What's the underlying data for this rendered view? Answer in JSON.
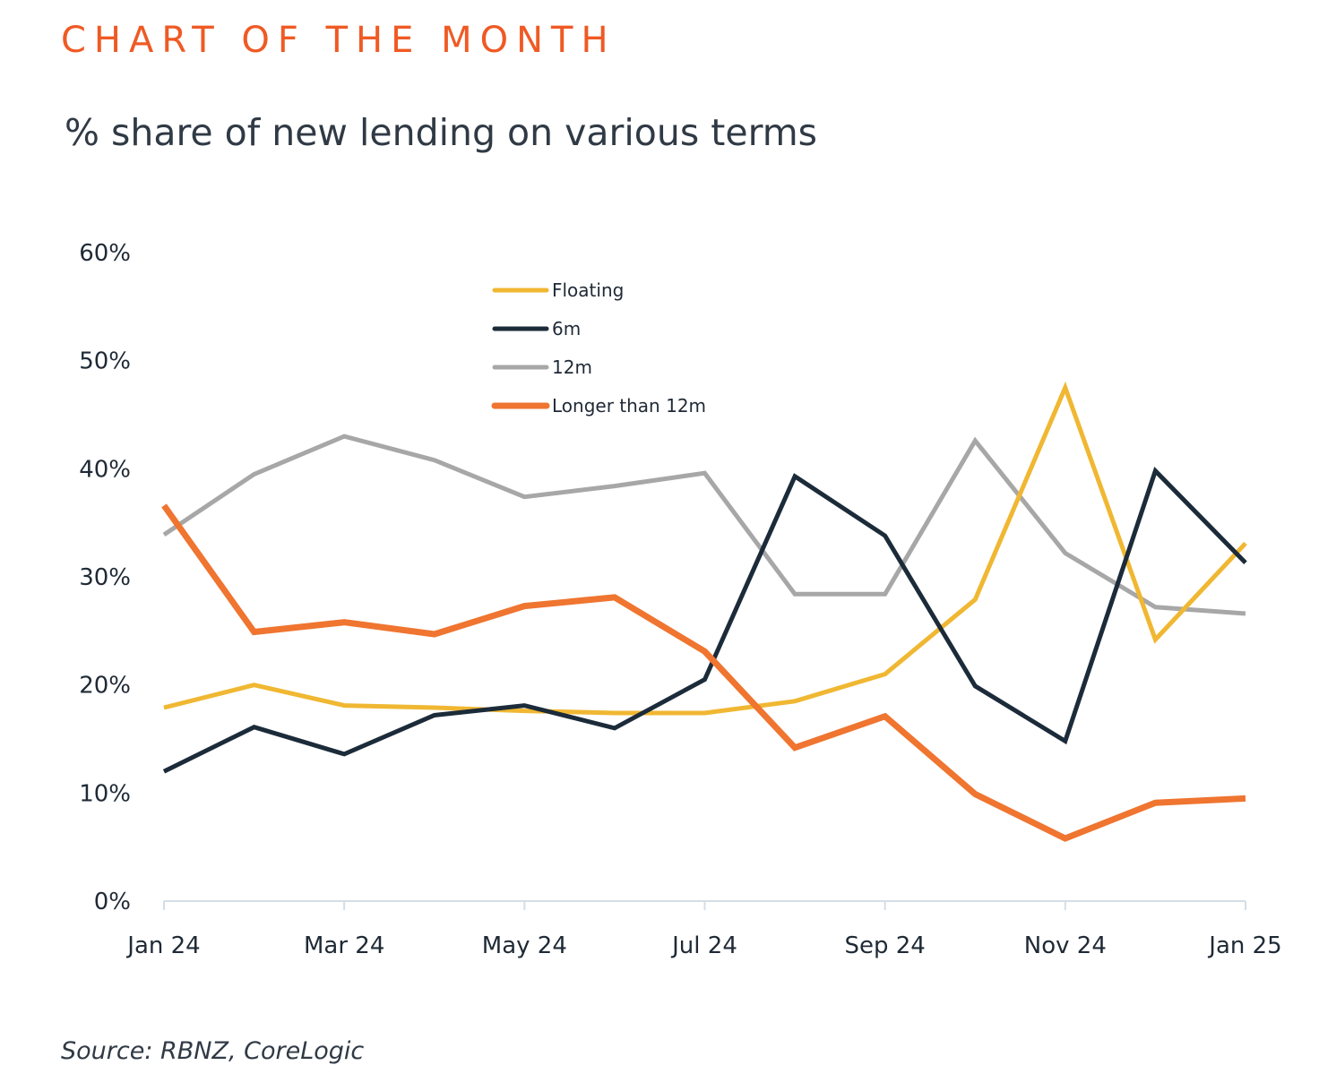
{
  "header": {
    "kicker": "CHART OF THE MONTH",
    "title": "% share of new lending on various terms"
  },
  "footer": {
    "source": "Source: RBNZ, CoreLogic"
  },
  "chart_data": {
    "type": "line",
    "title": "% share of new lending on various terms",
    "xlabel": "",
    "ylabel": "",
    "x": [
      "Jan 24",
      "Feb 24",
      "Mar 24",
      "Apr 24",
      "May 24",
      "Jun 24",
      "Jul 24",
      "Aug 24",
      "Sep 24",
      "Oct 24",
      "Nov 24",
      "Dec 24",
      "Jan 25"
    ],
    "x_tick_labels": [
      "Jan 24",
      "Mar 24",
      "May 24",
      "Jul 24",
      "Sep 24",
      "Nov 24",
      "Jan 25"
    ],
    "x_tick_indices": [
      0,
      2,
      4,
      6,
      8,
      10,
      12
    ],
    "ylim": [
      0,
      60
    ],
    "y_ticks": [
      0,
      10,
      20,
      30,
      40,
      50,
      60
    ],
    "y_tick_labels": [
      "0%",
      "10%",
      "20%",
      "30%",
      "40%",
      "50%",
      "60%"
    ],
    "grid": false,
    "legend_position": "top-center",
    "series": [
      {
        "name": "Floating",
        "color": "#f0b732",
        "values": [
          17.9,
          20.0,
          18.1,
          17.9,
          17.6,
          17.4,
          17.4,
          18.5,
          21.0,
          27.9,
          47.5,
          24.2,
          33.1
        ]
      },
      {
        "name": "6m",
        "color": "#1c2b39",
        "values": [
          12.0,
          16.1,
          13.6,
          17.2,
          18.1,
          16.0,
          20.5,
          39.3,
          33.8,
          19.9,
          14.8,
          39.8,
          31.3
        ]
      },
      {
        "name": "12m",
        "color": "#a7a7a7",
        "values": [
          33.9,
          39.5,
          43.0,
          40.8,
          37.4,
          38.4,
          39.6,
          28.4,
          28.4,
          42.6,
          32.2,
          27.2,
          26.6
        ]
      },
      {
        "name": "Longer than 12m",
        "color": "#ef7530",
        "values": [
          36.6,
          24.9,
          25.8,
          24.7,
          27.3,
          28.1,
          23.1,
          14.2,
          17.1,
          9.9,
          5.8,
          9.1,
          9.5
        ]
      }
    ]
  }
}
